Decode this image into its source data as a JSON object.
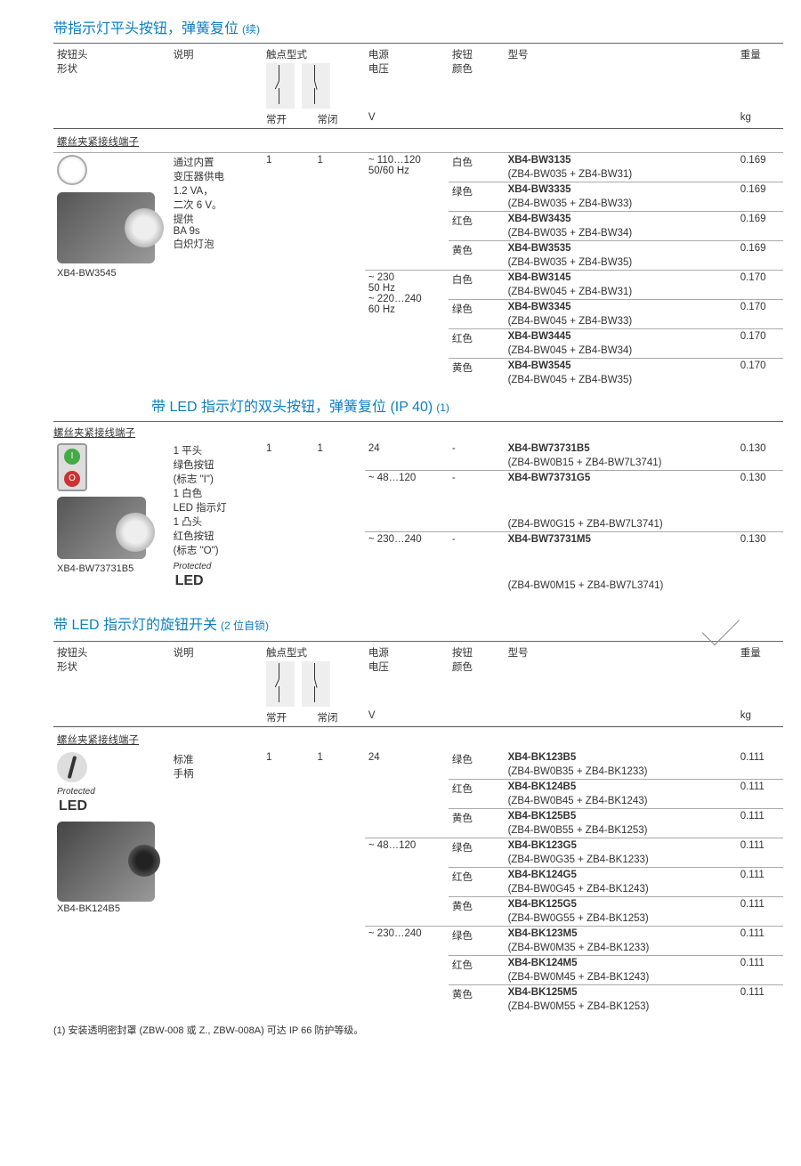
{
  "colors": {
    "title_blue": "#0b7fc0",
    "text": "#333333",
    "rule": "#666666",
    "row_border": "#aaaaaa",
    "gray_bg": "#eeeeee"
  },
  "section1": {
    "title_main": "带指示灯平头按钮，弹簧复位",
    "title_sub": "(续)",
    "headers": {
      "shape": "按钮头\n形状",
      "desc": "说明",
      "contact": "触点型式",
      "no": "常开",
      "nc": "常闭",
      "voltage": "电源\n电压",
      "v": "V",
      "btncolor": "按钮\n颜色",
      "model": "型号",
      "weight": "重量",
      "kg": "kg"
    },
    "subhead": "螺丝夹紧接线端子",
    "caption": "XB4-BW3545",
    "desc_text": "通过内置\n变压器供电\n1.2 VA，\n二次 6 V。\n提供\nBA 9s\n白炽灯泡",
    "no_val": "1",
    "nc_val": "1",
    "groups": [
      {
        "voltage": "~ 110…120\n50/60 Hz",
        "rows": [
          {
            "color": "白色",
            "model": "XB4-BW3135",
            "sub": "(ZB4-BW035 + ZB4-BW31)",
            "wt": "0.169"
          },
          {
            "color": "绿色",
            "model": "XB4-BW3335",
            "sub": "(ZB4-BW035 + ZB4-BW33)",
            "wt": "0.169"
          },
          {
            "color": "红色",
            "model": "XB4-BW3435",
            "sub": "(ZB4-BW035 + ZB4-BW34)",
            "wt": "0.169"
          },
          {
            "color": "黄色",
            "model": "XB4-BW3535",
            "sub": "(ZB4-BW035 + ZB4-BW35)",
            "wt": "0.169"
          }
        ]
      },
      {
        "voltage": "~ 230\n50 Hz\n~ 220…240\n60 Hz",
        "rows": [
          {
            "color": "白色",
            "model": "XB4-BW3145",
            "sub": "(ZB4-BW045 + ZB4-BW31)",
            "wt": "0.170"
          },
          {
            "color": "绿色",
            "model": "XB4-BW3345",
            "sub": "(ZB4-BW045 + ZB4-BW33)",
            "wt": "0.170"
          },
          {
            "color": "红色",
            "model": "XB4-BW3445",
            "sub": "(ZB4-BW045 + ZB4-BW34)",
            "wt": "0.170"
          },
          {
            "color": "黄色",
            "model": "XB4-BW3545",
            "sub": "(ZB4-BW045 + ZB4-BW35)",
            "wt": "0.170"
          }
        ]
      }
    ]
  },
  "section2": {
    "title_main": "带 LED 指示灯的双头按钮，弹簧复位 (IP 40)",
    "title_sub": "(1)",
    "subhead": "螺丝夹紧接线端子",
    "caption": "XB4-BW73731B5",
    "desc_text": "1 平头\n绿色按钮\n(标志 \"I\")\n1 白色\nLED 指示灯\n1 凸头\n红色按钮\n(标志 \"O\")",
    "protected": "Protected",
    "led": "LED",
    "no_val": "1",
    "nc_val": "1",
    "rows": [
      {
        "voltage": "24",
        "color": "-",
        "model": "XB4-BW73731B5",
        "sub": "(ZB4-BW0B15 + ZB4-BW7L3741)",
        "wt": "0.130"
      },
      {
        "voltage": "~ 48…120",
        "color": "-",
        "model": "XB4-BW73731G5",
        "sub": "(ZB4-BW0G15 + ZB4-BW7L3741)",
        "wt": "0.130"
      },
      {
        "voltage": "~ 230…240",
        "color": "-",
        "model": "XB4-BW73731M5",
        "sub": "(ZB4-BW0M15 + ZB4-BW7L3741)",
        "wt": "0.130"
      }
    ]
  },
  "section3": {
    "title_main": "带 LED 指示灯的旋钮开关",
    "title_sub": "(2 位自锁)",
    "headers": {
      "shape": "按钮头\n形状",
      "desc": "说明",
      "contact": "触点型式",
      "no": "常开",
      "nc": "常闭",
      "voltage": "电源\n电压",
      "v": "V",
      "btncolor": "按钮\n颜色",
      "model": "型号",
      "weight": "重量",
      "kg": "kg"
    },
    "subhead": "螺丝夹紧接线端子",
    "caption": "XB4-BK124B5",
    "desc_text": "标准\n手柄",
    "protected": "Protected",
    "led": "LED",
    "no_val": "1",
    "nc_val": "1",
    "groups": [
      {
        "voltage": "24",
        "rows": [
          {
            "color": "绿色",
            "model": "XB4-BK123B5",
            "sub": "(ZB4-BW0B35 + ZB4-BK1233)",
            "wt": "0.111"
          },
          {
            "color": "红色",
            "model": "XB4-BK124B5",
            "sub": "(ZB4-BW0B45 + ZB4-BK1243)",
            "wt": "0.111"
          },
          {
            "color": "黄色",
            "model": "XB4-BK125B5",
            "sub": "(ZB4-BW0B55 + ZB4-BK1253)",
            "wt": "0.111"
          }
        ]
      },
      {
        "voltage": "~ 48…120",
        "rows": [
          {
            "color": "绿色",
            "model": "XB4-BK123G5",
            "sub": "(ZB4-BW0G35 + ZB4-BK1233)",
            "wt": "0.111"
          },
          {
            "color": "红色",
            "model": "XB4-BK124G5",
            "sub": "(ZB4-BW0G45 + ZB4-BK1243)",
            "wt": "0.111"
          },
          {
            "color": "黄色",
            "model": "XB4-BK125G5",
            "sub": "(ZB4-BW0G55 + ZB4-BK1253)",
            "wt": "0.111"
          }
        ]
      },
      {
        "voltage": "~ 230…240",
        "rows": [
          {
            "color": "绿色",
            "model": "XB4-BK123M5",
            "sub": "(ZB4-BW0M35 + ZB4-BK1233)",
            "wt": "0.111"
          },
          {
            "color": "红色",
            "model": "XB4-BK124M5",
            "sub": "(ZB4-BW0M45 + ZB4-BK1243)",
            "wt": "0.111"
          },
          {
            "color": "黄色",
            "model": "XB4-BK125M5",
            "sub": "(ZB4-BW0M55 + ZB4-BK1253)",
            "wt": "0.111"
          }
        ]
      }
    ]
  },
  "footnote": "(1) 安装透明密封罩 (ZBW-008 或 Z., ZBW-008A) 可达 IP 66 防护等级。"
}
